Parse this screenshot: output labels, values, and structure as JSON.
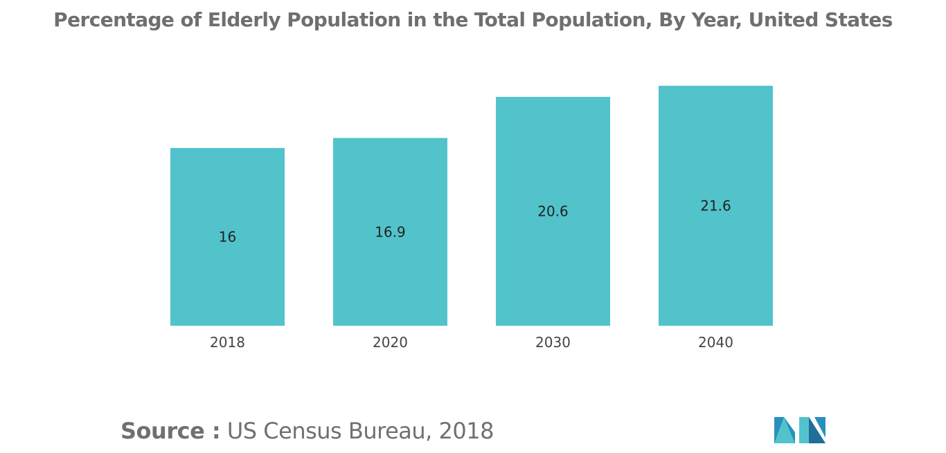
{
  "chart_data": {
    "type": "bar",
    "title": "Percentage of Elderly Population in the Total Population, By Year, United States",
    "categories": [
      "2018",
      "2020",
      "2030",
      "2040"
    ],
    "values": [
      16,
      16.9,
      20.6,
      21.6
    ],
    "value_labels": [
      "16",
      "16.9",
      "20.6",
      "21.6"
    ],
    "xlabel": "",
    "ylabel": "",
    "ylim": [
      0,
      22
    ],
    "grid": false,
    "legend": "none",
    "bar_color": "#52c3cb"
  },
  "source": {
    "label": "Source :",
    "text": " US Census Bureau, 2018"
  },
  "logo": {
    "icon": "mordor-intelligence-logo-icon",
    "colors": [
      "#2a8fbf",
      "#52c3cb",
      "#1f6f9a"
    ]
  }
}
